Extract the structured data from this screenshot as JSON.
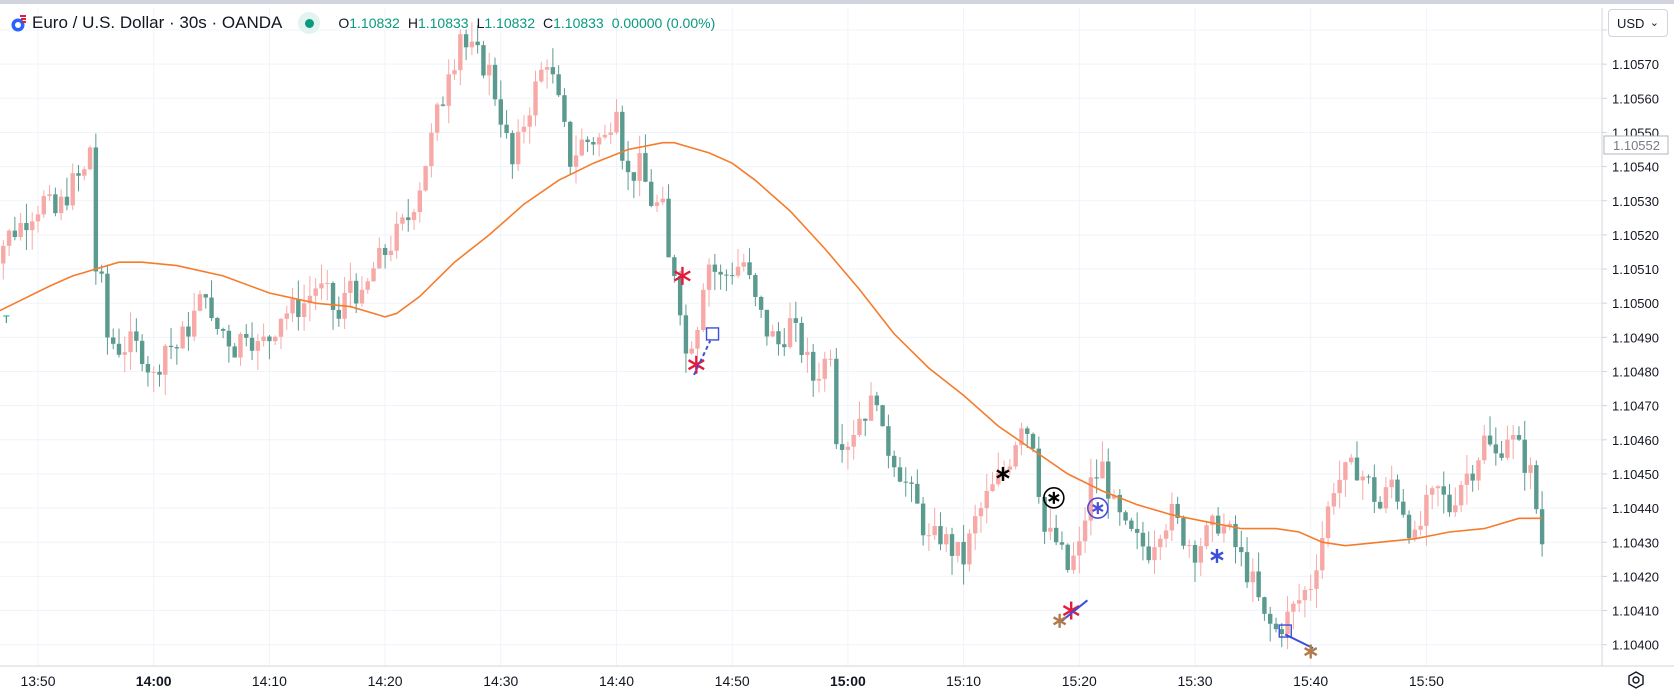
{
  "legend": {
    "symbol_title": "Euro / U.S. Dollar · 30s · OANDA",
    "open_label": "O",
    "open": "1.10832",
    "high_label": "H",
    "high": "1.10833",
    "low_label": "L",
    "low": "1.10832",
    "close_label": "C",
    "close": "1.10833",
    "change": "0.00000 (0.00%)"
  },
  "currency": "USD",
  "side_marker": "T",
  "colors": {
    "up": "#f7a9a7",
    "down": "#5b9a8f",
    "ma": "#f57c2b",
    "grid": "#f0f3fa",
    "axis": "#131722"
  },
  "chart_data": {
    "type": "candlestick",
    "title": "Euro / U.S. Dollar · 30s · OANDA",
    "interval_seconds": 30,
    "x_range": [
      "13:45",
      "15:57"
    ],
    "ylim": [
      1.104,
      1.10585
    ],
    "y_ticks": [
      "1.10580",
      "1.10570",
      "1.10560",
      "1.10550",
      "1.10540",
      "1.10530",
      "1.10520",
      "1.10510",
      "1.10500",
      "1.10490",
      "1.10480",
      "1.10470",
      "1.10460",
      "1.10450",
      "1.10440",
      "1.10430",
      "1.10420",
      "1.10410",
      "1.10400"
    ],
    "y_tick_values": [
      1.1058,
      1.1057,
      1.1056,
      1.1055,
      1.1054,
      1.1053,
      1.1052,
      1.1051,
      1.105,
      1.1049,
      1.1048,
      1.1047,
      1.1046,
      1.1045,
      1.1044,
      1.1043,
      1.1042,
      1.1041,
      1.104
    ],
    "x_ticks": [
      {
        "label": "13:50",
        "minute": 50,
        "bold": false
      },
      {
        "label": "14:00",
        "minute": 60,
        "bold": true
      },
      {
        "label": "14:10",
        "minute": 70,
        "bold": false
      },
      {
        "label": "14:20",
        "minute": 80,
        "bold": false
      },
      {
        "label": "14:30",
        "minute": 90,
        "bold": false
      },
      {
        "label": "14:40",
        "minute": 100,
        "bold": false
      },
      {
        "label": "14:50",
        "minute": 110,
        "bold": false
      },
      {
        "label": "15:00",
        "minute": 120,
        "bold": true
      },
      {
        "label": "15:10",
        "minute": 130,
        "bold": false
      },
      {
        "label": "15:20",
        "minute": 140,
        "bold": false
      },
      {
        "label": "15:30",
        "minute": 150,
        "bold": false
      },
      {
        "label": "15:40",
        "minute": 160,
        "bold": false
      },
      {
        "label": "15:50",
        "minute": 170,
        "bold": false
      }
    ],
    "price_label": "1.10552",
    "price_label_value": 1.10552,
    "close_anchors": [
      [
        45.0,
        1.10505
      ],
      [
        45.5,
        1.1051
      ],
      [
        46.5,
        1.10515
      ],
      [
        47.5,
        1.1052
      ],
      [
        48.5,
        1.10523
      ],
      [
        49.5,
        1.10527
      ],
      [
        50.5,
        1.1053
      ],
      [
        51.5,
        1.10526
      ],
      [
        52.5,
        1.10532
      ],
      [
        53.0,
        1.10535
      ],
      [
        54.0,
        1.10538
      ],
      [
        54.5,
        1.10546
      ],
      [
        55.0,
        1.1051
      ],
      [
        55.5,
        1.10505
      ],
      [
        56.0,
        1.1049
      ],
      [
        57.0,
        1.10487
      ],
      [
        58.0,
        1.10488
      ],
      [
        59.0,
        1.10486
      ],
      [
        60.0,
        1.10478
      ],
      [
        61.0,
        1.10488
      ],
      [
        62.0,
        1.10487
      ],
      [
        63.0,
        1.10493
      ],
      [
        64.0,
        1.105
      ],
      [
        64.5,
        1.10505
      ],
      [
        65.0,
        1.10493
      ],
      [
        66.0,
        1.10492
      ],
      [
        67.0,
        1.10487
      ],
      [
        68.0,
        1.10493
      ],
      [
        69.0,
        1.10487
      ],
      [
        70.0,
        1.1049
      ],
      [
        71.0,
        1.10497
      ],
      [
        72.0,
        1.10498
      ],
      [
        73.0,
        1.105
      ],
      [
        74.0,
        1.10505
      ],
      [
        75.0,
        1.10502
      ],
      [
        76.0,
        1.10495
      ],
      [
        77.0,
        1.10507
      ],
      [
        78.0,
        1.105
      ],
      [
        79.0,
        1.1051
      ],
      [
        80.0,
        1.10515
      ],
      [
        81.0,
        1.1052
      ],
      [
        82.0,
        1.10525
      ],
      [
        83.0,
        1.10535
      ],
      [
        84.0,
        1.10548
      ],
      [
        84.5,
        1.10555
      ],
      [
        85.0,
        1.1056
      ],
      [
        85.5,
        1.1057
      ],
      [
        86.0,
        1.10572
      ],
      [
        86.5,
        1.1058
      ],
      [
        87.0,
        1.10575
      ],
      [
        88.0,
        1.10572
      ],
      [
        89.0,
        1.10568
      ],
      [
        90.0,
        1.10555
      ],
      [
        91.0,
        1.1054
      ],
      [
        92.0,
        1.10553
      ],
      [
        93.0,
        1.10563
      ],
      [
        94.0,
        1.10572
      ],
      [
        95.0,
        1.10558
      ],
      [
        96.0,
        1.10542
      ],
      [
        97.0,
        1.10547
      ],
      [
        98.0,
        1.10548
      ],
      [
        99.0,
        1.10548
      ],
      [
        100.0,
        1.1056
      ],
      [
        100.5,
        1.10545
      ],
      [
        101.0,
        1.10537
      ],
      [
        102.0,
        1.1054
      ],
      [
        103.0,
        1.1053
      ],
      [
        104.0,
        1.10527
      ],
      [
        104.5,
        1.10512
      ],
      [
        105.0,
        1.1051
      ],
      [
        105.5,
        1.105
      ],
      [
        106.0,
        1.10485
      ],
      [
        107.0,
        1.10495
      ],
      [
        107.5,
        1.10507
      ],
      [
        108.0,
        1.10512
      ],
      [
        109.0,
        1.10507
      ],
      [
        110.0,
        1.1051
      ],
      [
        111.0,
        1.10512
      ],
      [
        112.0,
        1.105
      ],
      [
        113.0,
        1.10492
      ],
      [
        114.0,
        1.10488
      ],
      [
        115.0,
        1.10494
      ],
      [
        116.0,
        1.10487
      ],
      [
        117.0,
        1.10478
      ],
      [
        118.0,
        1.10483
      ],
      [
        118.5,
        1.10487
      ],
      [
        119.0,
        1.10462
      ],
      [
        120.0,
        1.1046
      ],
      [
        121.0,
        1.10467
      ],
      [
        122.0,
        1.1047
      ],
      [
        122.5,
        1.10474
      ],
      [
        123.0,
        1.1046
      ],
      [
        124.0,
        1.10455
      ],
      [
        125.0,
        1.10447
      ],
      [
        126.0,
        1.1044
      ],
      [
        127.0,
        1.1043
      ],
      [
        128.0,
        1.10432
      ],
      [
        129.0,
        1.10428
      ],
      [
        130.0,
        1.10425
      ],
      [
        131.0,
        1.10436
      ],
      [
        132.0,
        1.10443
      ],
      [
        133.0,
        1.10448
      ],
      [
        134.0,
        1.10455
      ],
      [
        135.0,
        1.10466
      ],
      [
        136.0,
        1.1046
      ],
      [
        137.0,
        1.10433
      ],
      [
        138.0,
        1.1043
      ],
      [
        139.0,
        1.10422
      ],
      [
        140.0,
        1.10428
      ],
      [
        141.0,
        1.10447
      ],
      [
        142.0,
        1.10452
      ],
      [
        143.0,
        1.1044
      ],
      [
        144.0,
        1.10433
      ],
      [
        145.0,
        1.1043
      ],
      [
        146.0,
        1.10428
      ],
      [
        147.0,
        1.10435
      ],
      [
        148.0,
        1.10438
      ],
      [
        149.0,
        1.10432
      ],
      [
        150.0,
        1.10428
      ],
      [
        151.0,
        1.10432
      ],
      [
        152.0,
        1.10436
      ],
      [
        153.0,
        1.10432
      ],
      [
        154.0,
        1.10425
      ],
      [
        155.0,
        1.10418
      ],
      [
        156.0,
        1.10407
      ],
      [
        157.0,
        1.10404
      ],
      [
        158.0,
        1.10408
      ],
      [
        159.0,
        1.10413
      ],
      [
        160.0,
        1.10418
      ],
      [
        161.0,
        1.10432
      ],
      [
        162.0,
        1.10447
      ],
      [
        163.0,
        1.1045
      ],
      [
        164.0,
        1.10452
      ],
      [
        165.0,
        1.10447
      ],
      [
        166.0,
        1.1044
      ],
      [
        167.0,
        1.10448
      ],
      [
        168.0,
        1.1044
      ],
      [
        169.0,
        1.1043
      ],
      [
        170.0,
        1.1044
      ],
      [
        171.0,
        1.10445
      ],
      [
        172.0,
        1.1044
      ],
      [
        173.0,
        1.10448
      ],
      [
        174.0,
        1.10452
      ],
      [
        175.0,
        1.1046
      ],
      [
        176.0,
        1.10455
      ],
      [
        177.0,
        1.10462
      ],
      [
        178.0,
        1.10457
      ],
      [
        179.0,
        1.1045
      ],
      [
        180.0,
        1.1043
      ]
    ],
    "ma_points": [
      [
        45.0,
        1.10495
      ],
      [
        48.0,
        1.105
      ],
      [
        51.0,
        1.10505
      ],
      [
        53.0,
        1.10508
      ],
      [
        54.0,
        1.10509
      ],
      [
        55.0,
        1.1051
      ],
      [
        57.0,
        1.10512
      ],
      [
        59.0,
        1.10512
      ],
      [
        62.0,
        1.10511
      ],
      [
        66.0,
        1.10508
      ],
      [
        70.0,
        1.10503
      ],
      [
        74.0,
        1.105
      ],
      [
        77.0,
        1.10499
      ],
      [
        79.0,
        1.10497
      ],
      [
        80.0,
        1.10496
      ],
      [
        81.0,
        1.10497
      ],
      [
        83.0,
        1.10502
      ],
      [
        86.0,
        1.10512
      ],
      [
        89.0,
        1.1052
      ],
      [
        92.0,
        1.10529
      ],
      [
        95.0,
        1.10536
      ],
      [
        98.0,
        1.10541
      ],
      [
        101.0,
        1.10545
      ],
      [
        104.0,
        1.10547
      ],
      [
        105.0,
        1.10547
      ],
      [
        106.0,
        1.10546
      ],
      [
        108.0,
        1.10544
      ],
      [
        110.0,
        1.10541
      ],
      [
        112.0,
        1.10536
      ],
      [
        115.0,
        1.10527
      ],
      [
        118.0,
        1.10516
      ],
      [
        121.0,
        1.10504
      ],
      [
        124.0,
        1.10491
      ],
      [
        127.0,
        1.10481
      ],
      [
        130.0,
        1.10473
      ],
      [
        133.0,
        1.10464
      ],
      [
        136.0,
        1.10457
      ],
      [
        139.0,
        1.1045
      ],
      [
        142.0,
        1.10445
      ],
      [
        145.0,
        1.10441
      ],
      [
        148.0,
        1.10438
      ],
      [
        151.0,
        1.10436
      ],
      [
        154.0,
        1.10434
      ],
      [
        157.0,
        1.10434
      ],
      [
        159.0,
        1.10433
      ],
      [
        161.0,
        1.1043
      ],
      [
        163.0,
        1.10429
      ],
      [
        166.0,
        1.1043
      ],
      [
        169.0,
        1.10431
      ],
      [
        172.0,
        1.10433
      ],
      [
        175.0,
        1.10434
      ],
      [
        178.0,
        1.10437
      ],
      [
        180.0,
        1.10437
      ]
    ],
    "annotations": [
      {
        "type": "star",
        "minute": 105.7,
        "price": 1.10508,
        "color": "#e31c3d",
        "size": 9
      },
      {
        "type": "star",
        "minute": 106.9,
        "price": 1.10482,
        "color": "#e31c3d",
        "size": 9
      },
      {
        "type": "line",
        "from": [
          106.7,
          1.10479
        ],
        "to": [
          108.1,
          1.10489
        ],
        "color": "#3b4fd8",
        "dash": true
      },
      {
        "type": "box",
        "minute": 108.3,
        "price": 1.10491,
        "color": "#3b4fd8"
      },
      {
        "type": "star",
        "minute": 133.4,
        "price": 1.1045,
        "color": "#000000",
        "size": 7
      },
      {
        "type": "circle-star",
        "minute": 137.8,
        "price": 1.10443,
        "color": "#000000"
      },
      {
        "type": "circle-star",
        "minute": 141.6,
        "price": 1.1044,
        "color": "#4a4fd8"
      },
      {
        "type": "star",
        "minute": 151.9,
        "price": 1.10426,
        "color": "#3b4fd8",
        "size": 7
      },
      {
        "type": "star",
        "minute": 139.3,
        "price": 1.1041,
        "color": "#e31c3d",
        "size": 9
      },
      {
        "type": "line",
        "from": [
          138.5,
          1.10407
        ],
        "to": [
          140.7,
          1.10413
        ],
        "color": "#3b4fd8",
        "dash": false
      },
      {
        "type": "star",
        "minute": 138.3,
        "price": 1.10407,
        "color": "#b07a4a",
        "size": 7
      },
      {
        "type": "box",
        "minute": 157.8,
        "price": 1.10404,
        "color": "#3b4fd8"
      },
      {
        "type": "line",
        "from": [
          157.8,
          1.10403
        ],
        "to": [
          160.2,
          1.10399
        ],
        "color": "#3b4fd8",
        "dash": false
      },
      {
        "type": "star",
        "minute": 160.0,
        "price": 1.10398,
        "color": "#b07a4a",
        "size": 7
      }
    ]
  }
}
